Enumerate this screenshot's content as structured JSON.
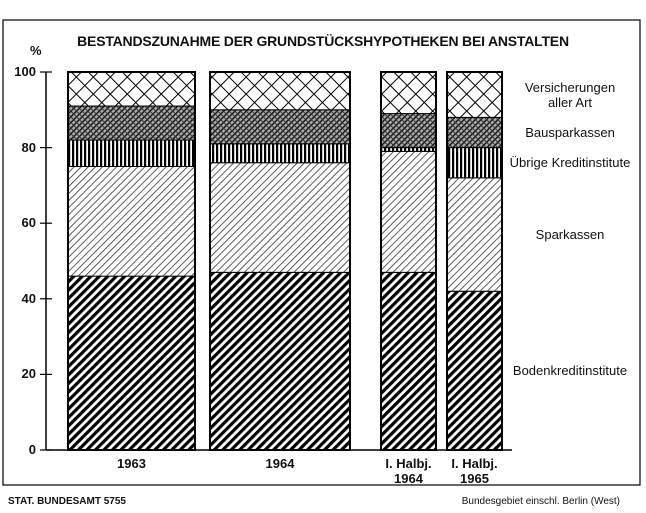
{
  "chart_data": {
    "type": "stacked_bar",
    "title": "BESTANDSZUNAHME DER GRUNDSTÜCKSHYPOTHEKEN BEI ANSTALTEN",
    "y_label": "%",
    "categories": [
      "1963",
      "1964",
      "I. Halbj.\n1964",
      "I. Halbj.\n1965"
    ],
    "series": [
      {
        "name": "Bodenkreditinstitute",
        "color": "#000000",
        "pattern": "heavy-diagonal",
        "values": [
          46,
          47,
          47,
          42
        ]
      },
      {
        "name": "Sparkassen",
        "color": "#000000",
        "pattern": "light-diagonal",
        "values": [
          29,
          29,
          32,
          30
        ]
      },
      {
        "name": "Übrige Kreditinstitute",
        "color": "#000000",
        "pattern": "vertical",
        "values": [
          7,
          5,
          1,
          8
        ]
      },
      {
        "name": "Bausparkassen",
        "color": "#000000",
        "pattern": "dense-crosshatch",
        "values": [
          9,
          9,
          9,
          8
        ]
      },
      {
        "name": "Versicherungen\naller Art",
        "color": "#000000",
        "pattern": "crosshatch",
        "values": [
          9,
          10,
          11,
          12
        ]
      }
    ],
    "ylim": [
      0,
      100
    ],
    "yticks": [
      0,
      20,
      40,
      60,
      80,
      100
    ],
    "source": "STAT. BUNDESAMT 5755",
    "note": "Bundesgebiet einschl. Berlin (West)"
  }
}
